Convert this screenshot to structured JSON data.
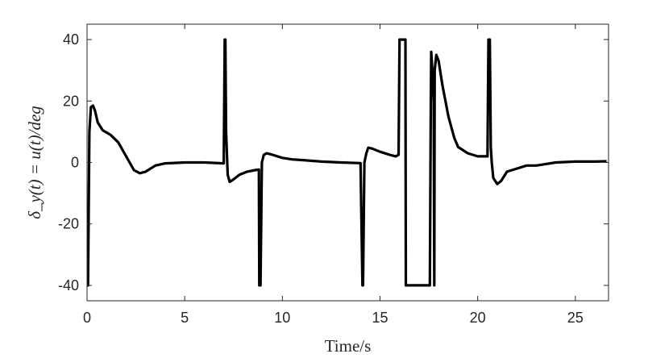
{
  "chart_data": {
    "type": "line",
    "title": "",
    "xlabel": "Time/s",
    "ylabel": "δ_y(t) = u(t)/deg",
    "xlim": [
      0,
      26.7
    ],
    "ylim": [
      -45,
      45
    ],
    "xticks": [
      0,
      5,
      10,
      15,
      20,
      25
    ],
    "yticks": [
      -40,
      -20,
      0,
      20,
      40
    ],
    "xtick_labels": [
      "0",
      "5",
      "10",
      "15",
      "20",
      "25"
    ],
    "ytick_labels": [
      "-40",
      "-20",
      "0",
      "20",
      "40"
    ],
    "grid": false,
    "legend": "none",
    "line_color": "#000000",
    "series": [
      {
        "x": [
          0,
          0.05,
          0.12,
          0.2,
          0.3,
          0.4,
          0.55,
          0.8,
          1.2,
          1.6,
          2.0,
          2.4,
          2.7,
          3.0,
          3.5,
          4.0,
          5.0,
          6.0,
          7.0,
          7.05,
          7.08,
          7.12,
          7.2,
          7.3,
          7.5,
          7.8,
          8.2,
          8.6,
          8.8,
          8.82,
          8.88,
          8.95,
          9.05,
          9.2,
          9.5,
          10,
          10.5,
          11,
          12,
          13,
          14,
          14.1,
          14.13,
          14.2,
          14.3,
          14.4,
          14.6,
          15.0,
          15.5,
          15.8,
          15.95,
          16.0,
          16.02,
          16.3,
          16.32,
          16.35,
          16.5,
          17.0,
          17.45,
          17.55,
          17.6,
          17.62,
          17.68,
          17.75,
          17.78,
          17.8,
          17.88,
          18.0,
          18.2,
          18.5,
          18.8,
          19.0,
          19.5,
          20.0,
          20.5,
          20.55,
          20.62,
          20.67,
          20.72,
          20.8,
          21.0,
          21.2,
          21.5,
          22.0,
          22.5,
          23,
          24,
          25,
          26,
          26.6
        ],
        "y": [
          -40,
          -40,
          10,
          18,
          18.5,
          17,
          13,
          10.5,
          9,
          6.5,
          2,
          -2.5,
          -3.5,
          -3,
          -1,
          -0.3,
          0,
          0,
          -0.3,
          40,
          40,
          10,
          -4,
          -6.3,
          -5.5,
          -4,
          -3,
          -2.5,
          -2.3,
          -40,
          -40,
          0,
          2.5,
          3,
          2.5,
          1.5,
          1,
          0.8,
          0.3,
          0,
          -0.2,
          -40,
          -40,
          0,
          3,
          4.8,
          4.5,
          3.5,
          2.5,
          2,
          2.5,
          40,
          40,
          40,
          -40,
          -40,
          -40,
          -40,
          -40,
          -40,
          20,
          36,
          30,
          20,
          -40,
          30,
          35,
          33,
          25,
          15,
          8,
          5,
          3,
          2,
          2,
          40,
          40,
          5,
          0,
          -5,
          -7,
          -6,
          -3,
          -2,
          -1,
          -1,
          0,
          0.3,
          0.3,
          0.4
        ]
      }
    ]
  }
}
